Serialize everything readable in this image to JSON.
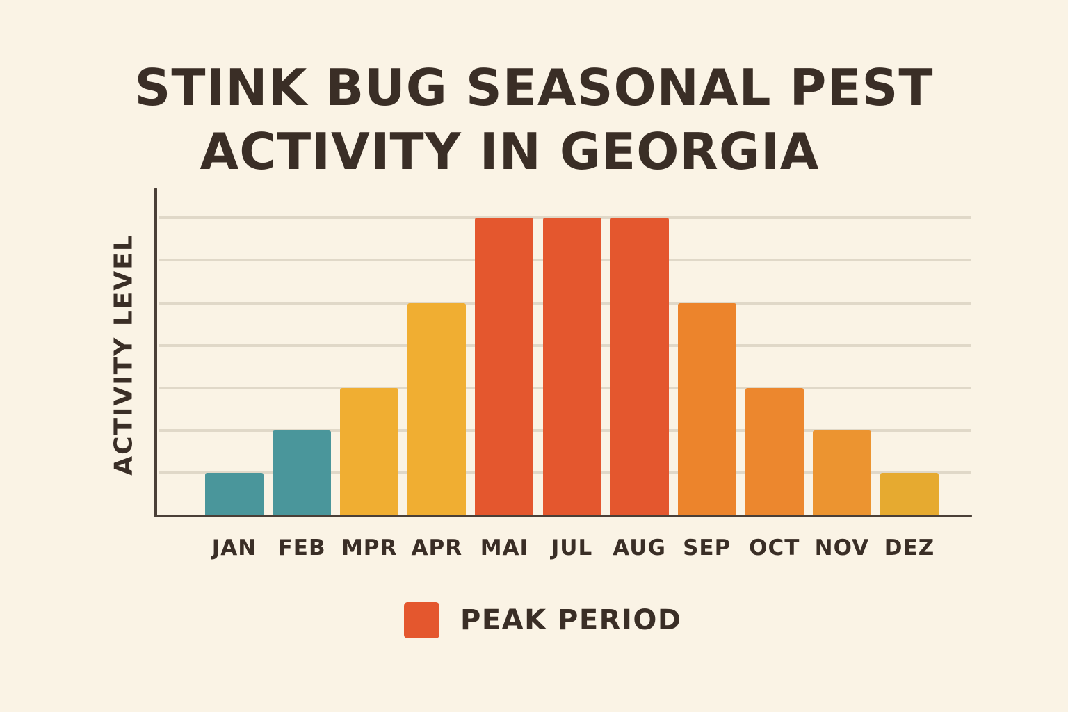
{
  "title": {
    "line1": "STINK BUG SEASONAL PEST",
    "line2": "ACTIVITY IN GEORGIA"
  },
  "axes": {
    "ylabel": "ACTIVITY LEVEL",
    "xlabel": ""
  },
  "legend": {
    "label": "PEAK PERIOD",
    "color": "#e4572e"
  },
  "colors": {
    "background": "#faf3e5",
    "text": "#3a2e26",
    "axis": "#4a3f37",
    "grid": "#e0d8c8"
  },
  "chart_data": {
    "type": "bar",
    "title": "STINK BUG SEASONAL PEST ACTIVITY IN GEORGIA",
    "xlabel": "",
    "ylabel": "ACTIVITY LEVEL",
    "categories": [
      "JAN",
      "FEB",
      "MPR",
      "APR",
      "MAI",
      "JUL",
      "AUG",
      "SEP",
      "OCT",
      "NOV",
      "DEZ"
    ],
    "values": [
      1,
      2,
      3,
      5,
      7,
      7,
      7,
      5,
      3,
      2,
      1
    ],
    "bar_colors": [
      "#4a969b",
      "#4a969b",
      "#f0ae32",
      "#f0ae32",
      "#e4572e",
      "#e4572e",
      "#e4572e",
      "#ec842c",
      "#ec872e",
      "#ec9430",
      "#e6aa30"
    ],
    "peak": [
      false,
      false,
      false,
      false,
      true,
      true,
      true,
      false,
      false,
      false,
      false
    ],
    "ylim": [
      0,
      7.5
    ],
    "ytick_labels": [],
    "grid": true,
    "gridlines": 7,
    "legend": [
      {
        "label": "PEAK PERIOD",
        "color": "#e4572e"
      }
    ],
    "legend_position": "bottom-center"
  }
}
